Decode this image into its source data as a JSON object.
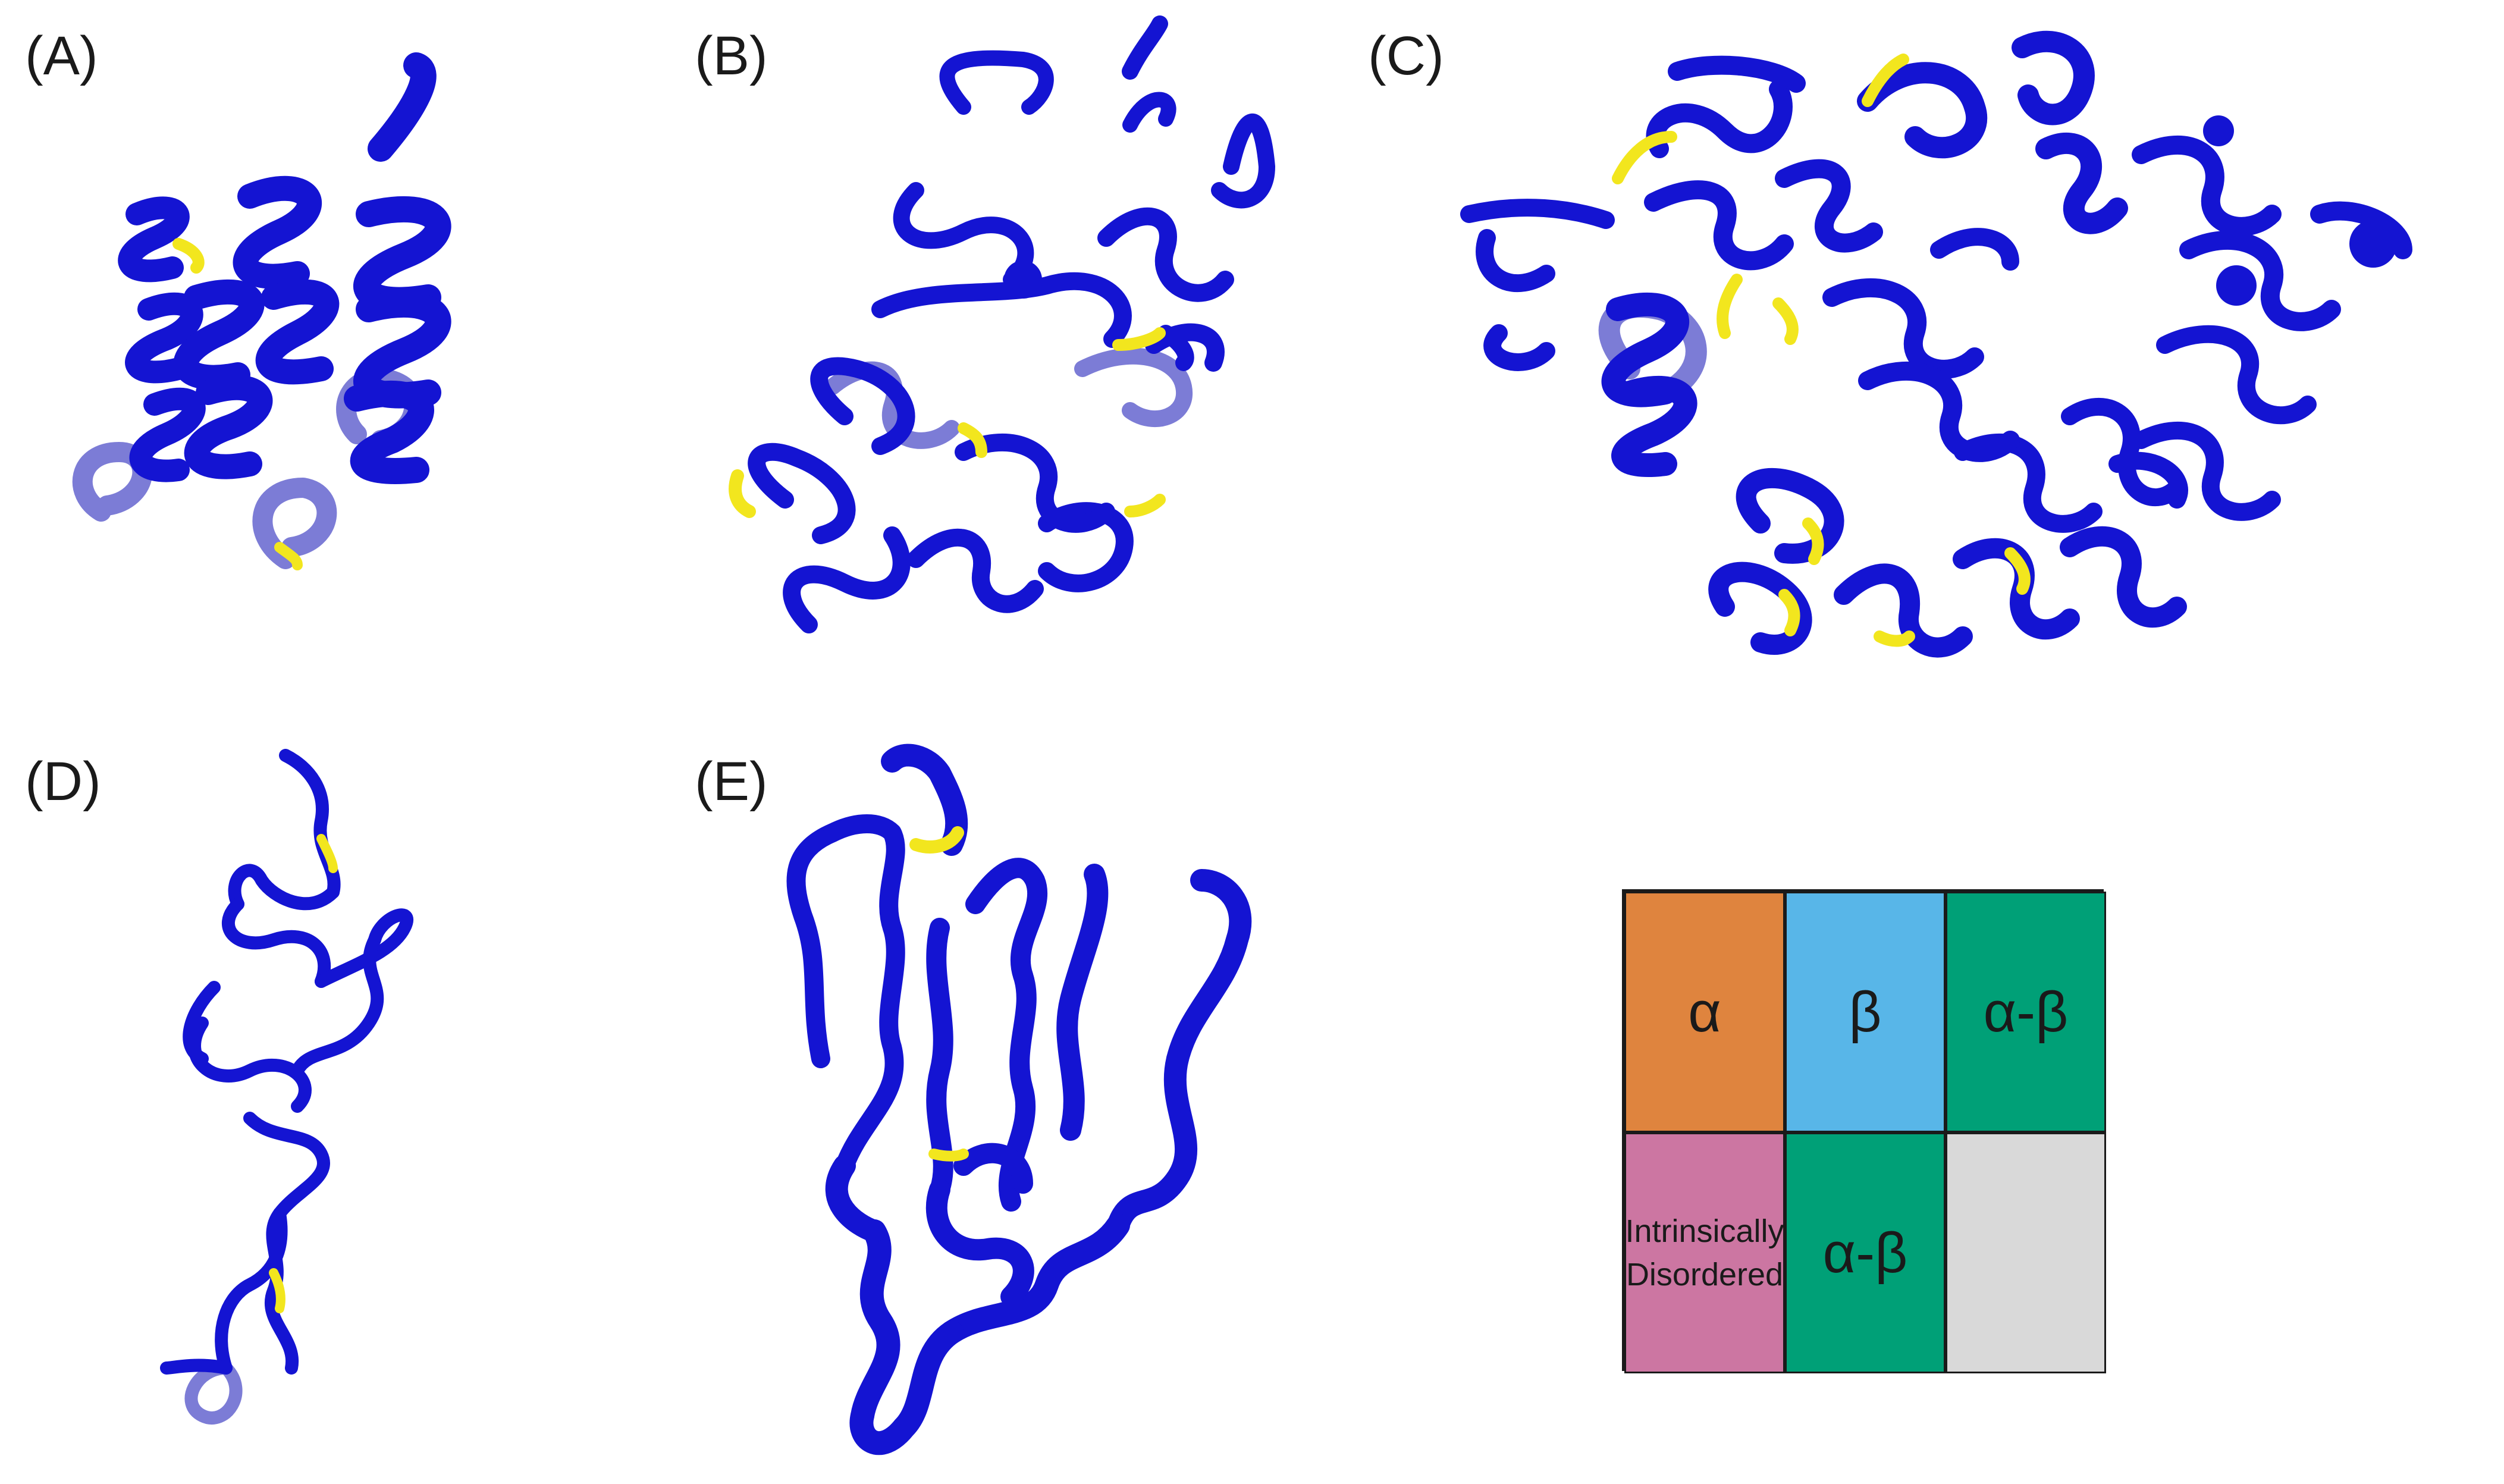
{
  "panels": [
    {
      "label": "(A)"
    },
    {
      "label": "(B)"
    },
    {
      "label": "(C)"
    },
    {
      "label": "(D)"
    },
    {
      "label": "(E)"
    }
  ],
  "legend": {
    "cells": [
      {
        "label": "α",
        "color": "#DF843E"
      },
      {
        "label": "β",
        "color": "#58B6E8"
      },
      {
        "label": "α-β",
        "color": "#00A077"
      },
      {
        "label": "Intrinsically Disordered",
        "color": "#CC76A2"
      },
      {
        "label": "α-β",
        "color": "#00A077"
      },
      {
        "label": "",
        "color": "#D9D9D9"
      }
    ]
  },
  "colors": {
    "ribbon": "#1414D2",
    "ribbon_faded": "#5050C8",
    "ribbon_grey": "#6A6A8A",
    "highlight": "#F2E61E"
  }
}
